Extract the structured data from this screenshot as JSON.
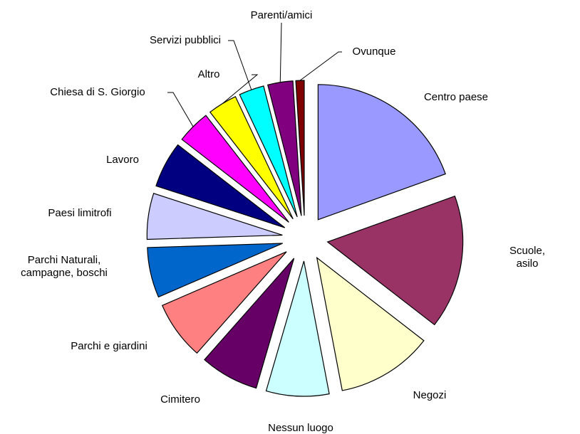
{
  "chart_data": {
    "type": "pie",
    "categories": [
      "Centro paese",
      "Scuole, asilo",
      "Negozi",
      "Nessun luogo",
      "Cimitero",
      "Parchi e giardini",
      "Parchi Naturali,\ncampagne, boschi",
      "Paesi limitrofi",
      "Lavoro",
      "Chiesa di S. Giorgio",
      "Altro",
      "Servizi pubblici",
      "Parenti/amici",
      "Ovunque"
    ],
    "values": [
      19.5,
      16,
      11.5,
      7.5,
      7,
      7,
      6,
      5.5,
      5.5,
      4,
      3.5,
      3,
      3,
      1
    ],
    "colors": [
      "#9999ff",
      "#993366",
      "#ffffcc",
      "#ccffff",
      "#660066",
      "#ff8080",
      "#0066cc",
      "#ccccff",
      "#000080",
      "#ff00ff",
      "#ffff00",
      "#00ffff",
      "#800080",
      "#800000"
    ]
  }
}
